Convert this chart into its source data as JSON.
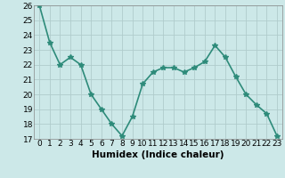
{
  "x": [
    0,
    1,
    2,
    3,
    4,
    5,
    6,
    7,
    8,
    9,
    10,
    11,
    12,
    13,
    14,
    15,
    16,
    17,
    18,
    19,
    20,
    21,
    22,
    23
  ],
  "y": [
    26.0,
    23.5,
    22.0,
    22.5,
    22.0,
    20.0,
    19.0,
    18.0,
    17.2,
    18.5,
    20.7,
    21.5,
    21.8,
    21.8,
    21.5,
    21.8,
    22.2,
    23.3,
    22.5,
    21.2,
    20.0,
    19.3,
    18.7,
    17.2
  ],
  "line_color": "#2e8b7a",
  "marker": "*",
  "marker_size": 4,
  "bg_color": "#cce8e8",
  "grid_color": "#b0cccc",
  "ylim": [
    17,
    26
  ],
  "yticks": [
    17,
    18,
    19,
    20,
    21,
    22,
    23,
    24,
    25,
    26
  ],
  "xlabel": "Humidex (Indice chaleur)",
  "xlabel_fontsize": 7.5,
  "tick_fontsize": 6.5,
  "line_width": 1.2,
  "figsize": [
    3.2,
    2.0
  ],
  "dpi": 100
}
